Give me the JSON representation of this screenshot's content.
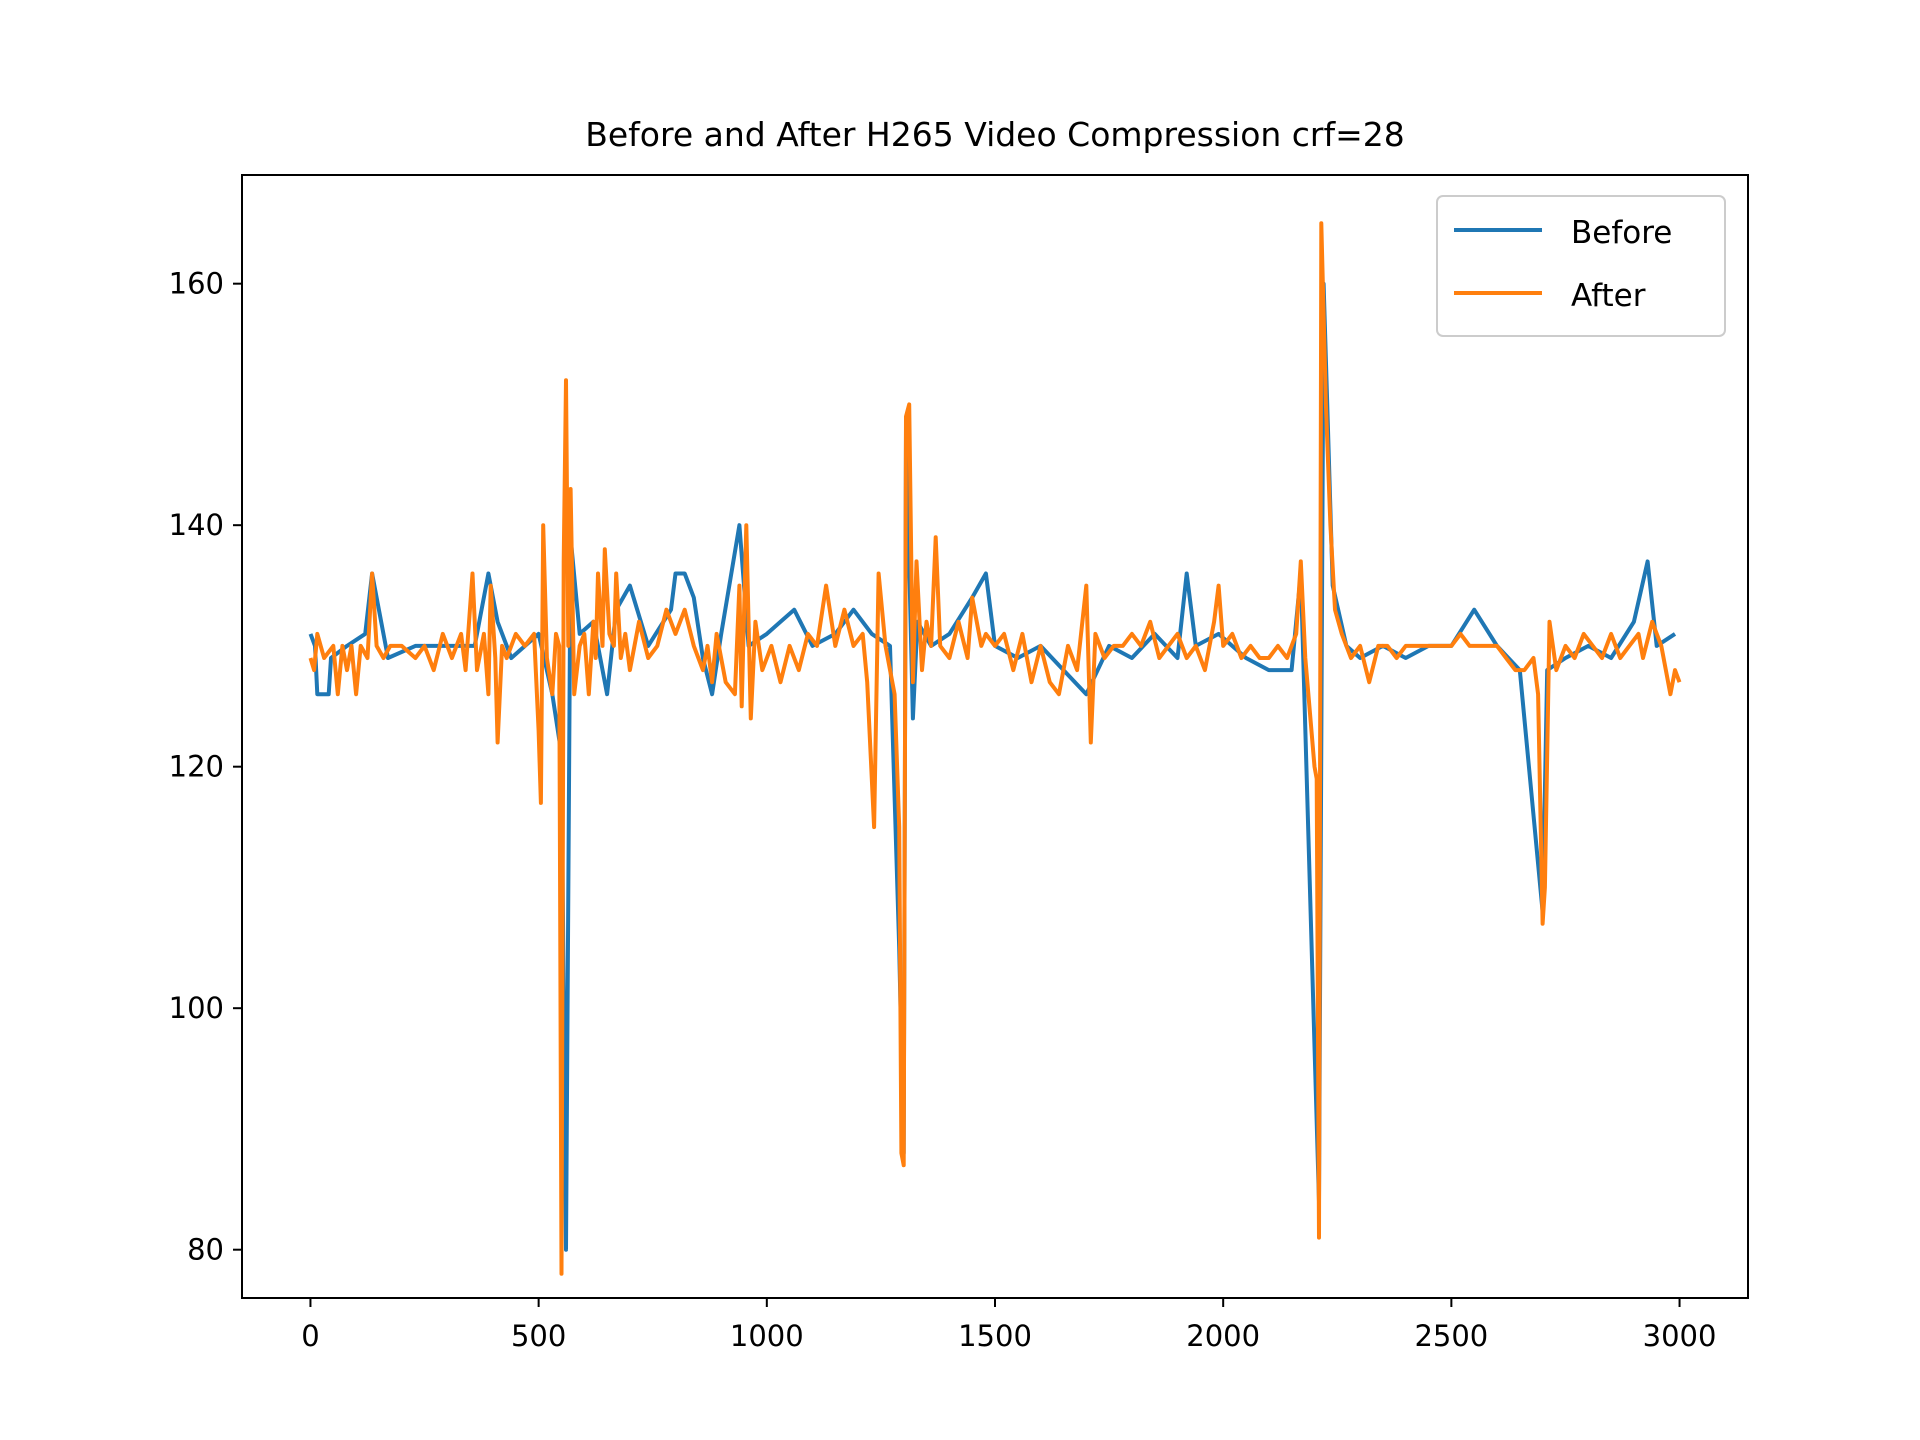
{
  "chart_data": {
    "type": "line",
    "title": "Before and After H265 Video Compression crf=28",
    "xlabel": "",
    "ylabel": "",
    "xlim": [
      -150,
      3150
    ],
    "ylim": [
      76,
      169
    ],
    "xticks": [
      0,
      500,
      1000,
      1500,
      2000,
      2500,
      3000
    ],
    "yticks": [
      80,
      100,
      120,
      140,
      160
    ],
    "grid": false,
    "legend_position": "top-right",
    "series": [
      {
        "name": "Before",
        "color": "#1f77b4",
        "points": [
          [
            0,
            131
          ],
          [
            10,
            130
          ],
          [
            15,
            126
          ],
          [
            40,
            126
          ],
          [
            45,
            129
          ],
          [
            80,
            130
          ],
          [
            120,
            131
          ],
          [
            135,
            136
          ],
          [
            150,
            133
          ],
          [
            170,
            129
          ],
          [
            230,
            130
          ],
          [
            300,
            130
          ],
          [
            360,
            130
          ],
          [
            390,
            136
          ],
          [
            410,
            132
          ],
          [
            440,
            129
          ],
          [
            500,
            131
          ],
          [
            530,
            126
          ],
          [
            550,
            121
          ],
          [
            560,
            80
          ],
          [
            570,
            139
          ],
          [
            590,
            131
          ],
          [
            620,
            132
          ],
          [
            650,
            126
          ],
          [
            670,
            133
          ],
          [
            700,
            135
          ],
          [
            740,
            130
          ],
          [
            790,
            133
          ],
          [
            800,
            136
          ],
          [
            820,
            136
          ],
          [
            840,
            134
          ],
          [
            860,
            129
          ],
          [
            880,
            126
          ],
          [
            900,
            131
          ],
          [
            940,
            140
          ],
          [
            960,
            130
          ],
          [
            1000,
            131
          ],
          [
            1030,
            132
          ],
          [
            1060,
            133
          ],
          [
            1100,
            130
          ],
          [
            1150,
            131
          ],
          [
            1190,
            133
          ],
          [
            1230,
            131
          ],
          [
            1270,
            130
          ],
          [
            1290,
            105
          ],
          [
            1300,
            88
          ],
          [
            1305,
            148
          ],
          [
            1320,
            124
          ],
          [
            1330,
            132
          ],
          [
            1360,
            130
          ],
          [
            1400,
            131
          ],
          [
            1450,
            134
          ],
          [
            1480,
            136
          ],
          [
            1500,
            130
          ],
          [
            1550,
            129
          ],
          [
            1600,
            130
          ],
          [
            1650,
            128
          ],
          [
            1700,
            126
          ],
          [
            1750,
            130
          ],
          [
            1800,
            129
          ],
          [
            1850,
            131
          ],
          [
            1900,
            129
          ],
          [
            1920,
            136
          ],
          [
            1940,
            130
          ],
          [
            1990,
            131
          ],
          [
            2050,
            129
          ],
          [
            2100,
            128
          ],
          [
            2150,
            128
          ],
          [
            2170,
            136
          ],
          [
            2210,
            84
          ],
          [
            2220,
            160
          ],
          [
            2240,
            135
          ],
          [
            2270,
            130
          ],
          [
            2300,
            129
          ],
          [
            2350,
            130
          ],
          [
            2400,
            129
          ],
          [
            2450,
            130
          ],
          [
            2500,
            130
          ],
          [
            2550,
            133
          ],
          [
            2600,
            130
          ],
          [
            2650,
            128
          ],
          [
            2700,
            108
          ],
          [
            2710,
            128
          ],
          [
            2750,
            129
          ],
          [
            2800,
            130
          ],
          [
            2850,
            129
          ],
          [
            2900,
            132
          ],
          [
            2930,
            137
          ],
          [
            2950,
            130
          ],
          [
            2990,
            131
          ]
        ]
      },
      {
        "name": "After",
        "color": "#ff7f0e",
        "points": [
          [
            0,
            129
          ],
          [
            8,
            128
          ],
          [
            15,
            131
          ],
          [
            30,
            129
          ],
          [
            50,
            130
          ],
          [
            60,
            126
          ],
          [
            70,
            130
          ],
          [
            80,
            128
          ],
          [
            90,
            130
          ],
          [
            100,
            126
          ],
          [
            110,
            130
          ],
          [
            125,
            129
          ],
          [
            135,
            136
          ],
          [
            145,
            130
          ],
          [
            160,
            129
          ],
          [
            175,
            130
          ],
          [
            200,
            130
          ],
          [
            230,
            129
          ],
          [
            250,
            130
          ],
          [
            270,
            128
          ],
          [
            290,
            131
          ],
          [
            310,
            129
          ],
          [
            330,
            131
          ],
          [
            340,
            128
          ],
          [
            355,
            136
          ],
          [
            365,
            128
          ],
          [
            380,
            131
          ],
          [
            390,
            126
          ],
          [
            395,
            135
          ],
          [
            405,
            129
          ],
          [
            410,
            122
          ],
          [
            420,
            130
          ],
          [
            430,
            129
          ],
          [
            450,
            131
          ],
          [
            470,
            130
          ],
          [
            490,
            131
          ],
          [
            500,
            123
          ],
          [
            505,
            117
          ],
          [
            510,
            140
          ],
          [
            518,
            129
          ],
          [
            530,
            126
          ],
          [
            538,
            131
          ],
          [
            545,
            130
          ],
          [
            550,
            78
          ],
          [
            555,
            137
          ],
          [
            560,
            152
          ],
          [
            565,
            130
          ],
          [
            570,
            143
          ],
          [
            578,
            126
          ],
          [
            590,
            130
          ],
          [
            600,
            131
          ],
          [
            610,
            126
          ],
          [
            620,
            132
          ],
          [
            625,
            129
          ],
          [
            630,
            136
          ],
          [
            640,
            130
          ],
          [
            645,
            138
          ],
          [
            655,
            131
          ],
          [
            665,
            130
          ],
          [
            670,
            136
          ],
          [
            680,
            129
          ],
          [
            690,
            131
          ],
          [
            700,
            128
          ],
          [
            720,
            132
          ],
          [
            740,
            129
          ],
          [
            760,
            130
          ],
          [
            780,
            133
          ],
          [
            800,
            131
          ],
          [
            820,
            133
          ],
          [
            840,
            130
          ],
          [
            860,
            128
          ],
          [
            870,
            130
          ],
          [
            880,
            127
          ],
          [
            890,
            131
          ],
          [
            910,
            127
          ],
          [
            930,
            126
          ],
          [
            940,
            135
          ],
          [
            945,
            125
          ],
          [
            955,
            140
          ],
          [
            965,
            124
          ],
          [
            975,
            132
          ],
          [
            990,
            128
          ],
          [
            1010,
            130
          ],
          [
            1030,
            127
          ],
          [
            1050,
            130
          ],
          [
            1070,
            128
          ],
          [
            1090,
            131
          ],
          [
            1110,
            130
          ],
          [
            1130,
            135
          ],
          [
            1150,
            130
          ],
          [
            1170,
            133
          ],
          [
            1190,
            130
          ],
          [
            1210,
            131
          ],
          [
            1220,
            127
          ],
          [
            1235,
            115
          ],
          [
            1245,
            136
          ],
          [
            1260,
            130
          ],
          [
            1280,
            126
          ],
          [
            1290,
            115
          ],
          [
            1295,
            88
          ],
          [
            1300,
            87
          ],
          [
            1305,
            149
          ],
          [
            1312,
            150
          ],
          [
            1320,
            127
          ],
          [
            1328,
            137
          ],
          [
            1340,
            128
          ],
          [
            1350,
            132
          ],
          [
            1360,
            130
          ],
          [
            1370,
            139
          ],
          [
            1380,
            130
          ],
          [
            1400,
            129
          ],
          [
            1420,
            132
          ],
          [
            1440,
            129
          ],
          [
            1450,
            134
          ],
          [
            1470,
            130
          ],
          [
            1480,
            131
          ],
          [
            1500,
            130
          ],
          [
            1520,
            131
          ],
          [
            1540,
            128
          ],
          [
            1560,
            131
          ],
          [
            1580,
            127
          ],
          [
            1600,
            130
          ],
          [
            1620,
            127
          ],
          [
            1640,
            126
          ],
          [
            1660,
            130
          ],
          [
            1680,
            128
          ],
          [
            1700,
            135
          ],
          [
            1710,
            122
          ],
          [
            1720,
            131
          ],
          [
            1740,
            129
          ],
          [
            1760,
            130
          ],
          [
            1780,
            130
          ],
          [
            1800,
            131
          ],
          [
            1820,
            130
          ],
          [
            1840,
            132
          ],
          [
            1860,
            129
          ],
          [
            1880,
            130
          ],
          [
            1900,
            131
          ],
          [
            1920,
            129
          ],
          [
            1940,
            130
          ],
          [
            1960,
            128
          ],
          [
            1980,
            132
          ],
          [
            1990,
            135
          ],
          [
            2000,
            130
          ],
          [
            2020,
            131
          ],
          [
            2040,
            129
          ],
          [
            2060,
            130
          ],
          [
            2080,
            129
          ],
          [
            2100,
            129
          ],
          [
            2120,
            130
          ],
          [
            2140,
            129
          ],
          [
            2150,
            130
          ],
          [
            2160,
            131
          ],
          [
            2170,
            137
          ],
          [
            2180,
            129
          ],
          [
            2200,
            120
          ],
          [
            2205,
            119
          ],
          [
            2210,
            81
          ],
          [
            2215,
            165
          ],
          [
            2225,
            150
          ],
          [
            2235,
            140
          ],
          [
            2245,
            133
          ],
          [
            2260,
            131
          ],
          [
            2280,
            129
          ],
          [
            2300,
            130
          ],
          [
            2320,
            127
          ],
          [
            2340,
            130
          ],
          [
            2360,
            130
          ],
          [
            2380,
            129
          ],
          [
            2400,
            130
          ],
          [
            2420,
            130
          ],
          [
            2440,
            130
          ],
          [
            2460,
            130
          ],
          [
            2480,
            130
          ],
          [
            2500,
            130
          ],
          [
            2520,
            131
          ],
          [
            2540,
            130
          ],
          [
            2560,
            130
          ],
          [
            2580,
            130
          ],
          [
            2600,
            130
          ],
          [
            2620,
            129
          ],
          [
            2640,
            128
          ],
          [
            2660,
            128
          ],
          [
            2680,
            129
          ],
          [
            2690,
            126
          ],
          [
            2700,
            107
          ],
          [
            2705,
            110
          ],
          [
            2715,
            132
          ],
          [
            2730,
            128
          ],
          [
            2750,
            130
          ],
          [
            2770,
            129
          ],
          [
            2790,
            131
          ],
          [
            2810,
            130
          ],
          [
            2830,
            129
          ],
          [
            2850,
            131
          ],
          [
            2870,
            129
          ],
          [
            2890,
            130
          ],
          [
            2910,
            131
          ],
          [
            2920,
            129
          ],
          [
            2940,
            132
          ],
          [
            2960,
            130
          ],
          [
            2980,
            126
          ],
          [
            2990,
            128
          ],
          [
            3000,
            127
          ]
        ]
      }
    ]
  }
}
